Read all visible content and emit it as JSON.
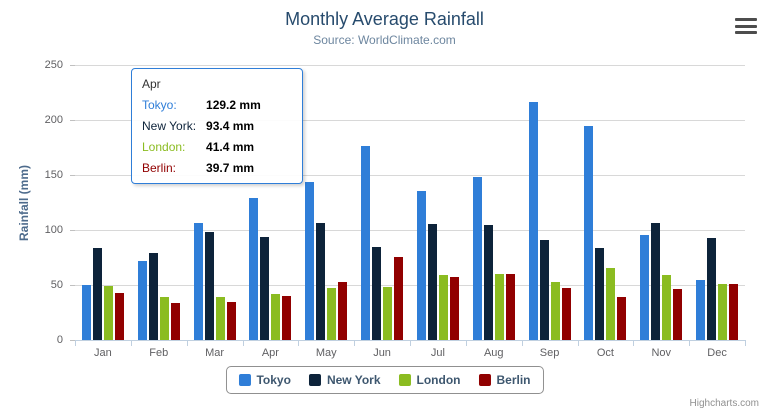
{
  "chart": {
    "title": "Monthly Average Rainfall",
    "subtitle": "Source: WorldClimate.com",
    "y_axis_title": "Rainfall (mm)",
    "credits": "Highcharts.com"
  },
  "chart_data": {
    "type": "bar",
    "title": "Monthly Average Rainfall",
    "subtitle": "Source: WorldClimate.com",
    "xlabel": "",
    "ylabel": "Rainfall (mm)",
    "ylim": [
      0,
      250
    ],
    "ytick_interval": 50,
    "grid": true,
    "legend_position": "bottom",
    "categories": [
      "Jan",
      "Feb",
      "Mar",
      "Apr",
      "May",
      "Jun",
      "Jul",
      "Aug",
      "Sep",
      "Oct",
      "Nov",
      "Dec"
    ],
    "series": [
      {
        "name": "Tokyo",
        "color": "#2f7ed8",
        "values": [
          49.9,
          71.5,
          106.4,
          129.2,
          144.0,
          176.0,
          135.6,
          148.5,
          216.4,
          194.1,
          95.6,
          54.4
        ]
      },
      {
        "name": "New York",
        "color": "#0d233a",
        "values": [
          83.6,
          78.8,
          98.5,
          93.4,
          106.0,
          84.5,
          105.0,
          104.3,
          91.2,
          83.5,
          106.6,
          92.3
        ]
      },
      {
        "name": "London",
        "color": "#8bbc21",
        "values": [
          48.9,
          38.8,
          39.3,
          41.4,
          47.0,
          48.3,
          59.0,
          59.6,
          52.4,
          65.2,
          59.3,
          51.2
        ]
      },
      {
        "name": "Berlin",
        "color": "#910000",
        "values": [
          42.4,
          33.2,
          34.5,
          39.7,
          52.6,
          75.5,
          57.4,
          60.4,
          47.6,
          39.1,
          46.8,
          51.1
        ]
      }
    ]
  },
  "tooltip": {
    "category": "Apr",
    "border_color": "#2f7ed8",
    "rows": [
      {
        "label": "Tokyo:",
        "value": "129.2 mm",
        "color": "#2f7ed8"
      },
      {
        "label": "New York:",
        "value": "93.4 mm",
        "color": "#0d233a"
      },
      {
        "label": "London:",
        "value": "41.4 mm",
        "color": "#8bbc21"
      },
      {
        "label": "Berlin:",
        "value": "39.7 mm",
        "color": "#910000"
      }
    ]
  }
}
